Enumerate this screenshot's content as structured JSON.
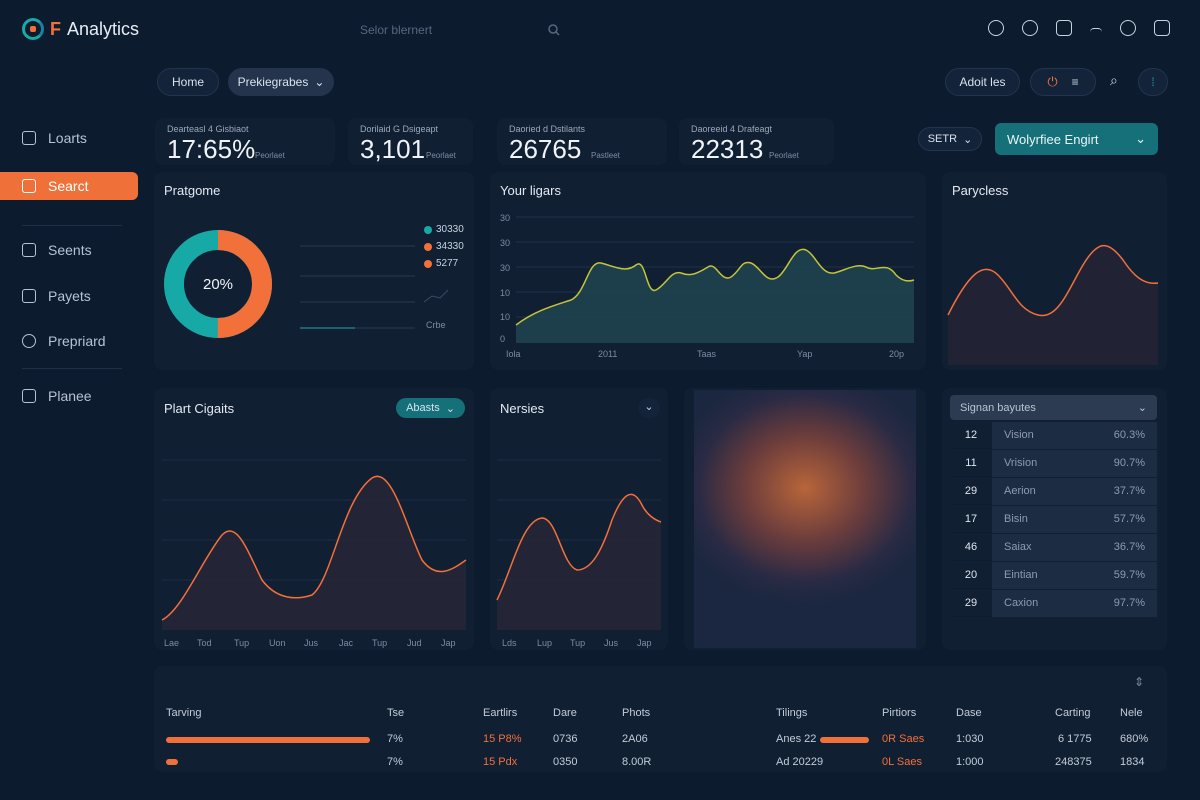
{
  "app": {
    "title": "Analytics",
    "title_prefix": "F"
  },
  "search": {
    "placeholder": "Selor blernert"
  },
  "top_icons": [
    "bell-icon",
    "clock-icon",
    "clipboard-icon",
    "menu-icon",
    "tag-icon",
    "lock-icon"
  ],
  "sidebar": {
    "items": [
      {
        "label": "Loarts",
        "icon": "grid-icon"
      },
      {
        "label": "Searct",
        "icon": "search-icon",
        "active": true
      },
      {
        "label": "Seents",
        "icon": "document-icon"
      },
      {
        "label": "Payets",
        "icon": "wallet-icon"
      },
      {
        "label": "Prepriard",
        "icon": "clock-icon"
      },
      {
        "label": "Planee",
        "icon": "cube-icon"
      }
    ]
  },
  "toolbar": {
    "home": "Home",
    "dropdown": "Prekiegrabes",
    "right_pill": "Adoit les",
    "select_small": "SETR",
    "select_teal": "Wolyrfiee Engirt"
  },
  "stats": [
    {
      "label": "Dearteasl 4 Gisbiaot",
      "value": "17:65%",
      "sub": "Peorlaet"
    },
    {
      "label": "Dorilaid G Dsigeapt",
      "value": "3,101",
      "sub": "Peorlaet"
    },
    {
      "label": "Daoried d Dstilants",
      "value": "26765",
      "sub": "Pastleet"
    },
    {
      "label": "Daoreeid 4 Drafeagt",
      "value": "22313",
      "sub": "Peorlaet"
    }
  ],
  "donut_card": {
    "title": "Pratgome",
    "center": "20%",
    "percent_value": 50,
    "legend": [
      {
        "label": "30330",
        "color": "#17a9a6"
      },
      {
        "label": "34330",
        "color": "#f2703a"
      },
      {
        "label": "5277",
        "color": "#f2703a"
      }
    ],
    "footnote": "Crbe"
  },
  "area_card": {
    "title": "Your ligars",
    "y_ticks": [
      "30",
      "30",
      "30",
      "10",
      "10",
      "0"
    ],
    "x_ticks": [
      "Iola",
      "2011",
      "Taas",
      "Yap",
      "20p"
    ]
  },
  "paryc_card": {
    "title": "Parycless"
  },
  "plant_card": {
    "title": "Plart Cigaits",
    "button": "Abasts",
    "x_ticks": [
      "Lae",
      "Tod",
      "Tup",
      "Uon",
      "Jus",
      "Jac",
      "Tup",
      "Jud",
      "Jap"
    ]
  },
  "nerses_card": {
    "title": "Nersies",
    "x_ticks": [
      "Lds",
      "Lup",
      "Tup",
      "Jus",
      "Jap"
    ]
  },
  "table_card": {
    "header": "Signan bayutes",
    "rows": [
      {
        "n": "12",
        "name": "Vision",
        "pct": "60.3%"
      },
      {
        "n": "11",
        "name": "Vrision",
        "pct": "90.7%"
      },
      {
        "n": "29",
        "name": "Aerion",
        "pct": "37.7%"
      },
      {
        "n": "17",
        "name": "Bisin",
        "pct": "57.7%"
      },
      {
        "n": "46",
        "name": "Saiax",
        "pct": "36.7%"
      },
      {
        "n": "20",
        "name": "Eintian",
        "pct": "59.7%"
      },
      {
        "n": "29",
        "name": "Caxion",
        "pct": "97.7%"
      }
    ]
  },
  "bottom_table": {
    "headers": [
      "Tarving",
      "Tse",
      "Eartlirs",
      "Dare",
      "Phots",
      "Tilings",
      "Pirtiors",
      "Dase",
      "Carting",
      "Nele"
    ],
    "rows": [
      {
        "bar_fraction": 1.0,
        "tse": "7%",
        "earn": "15 P8%",
        "dare": "0736",
        "phots": "2A06",
        "tilings": "Anes 22",
        "tilings_bar": 0.9,
        "pirt": "0R Saes",
        "dase": "1:030",
        "cart": "6 1775",
        "nele": "680%"
      },
      {
        "bar_fraction": 0.06,
        "tse": "7%",
        "earn": "15 Pdx",
        "dare": "0350",
        "phots": "8.00R",
        "tilings": "Ad 20229",
        "tilings_bar": 0,
        "pirt": "0L Saes",
        "dase": "1:000",
        "cart": "248375",
        "nele": "1834"
      }
    ]
  },
  "colors": {
    "accent": "#f2703a",
    "teal": "#17a9a6",
    "bg": "#0d1b2e",
    "card": "#111f33"
  }
}
